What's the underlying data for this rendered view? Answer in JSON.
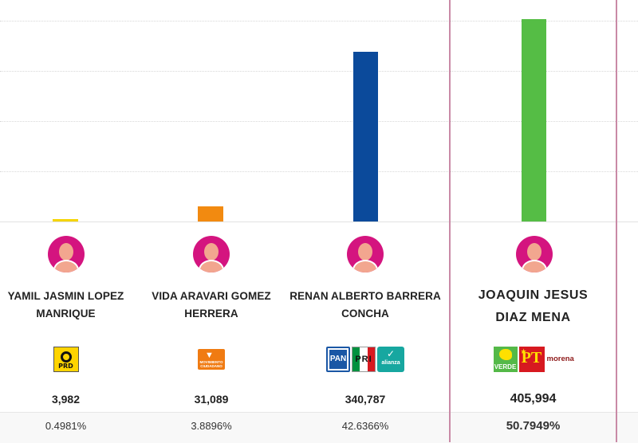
{
  "chart_data": {
    "type": "bar",
    "categories": [
      "YAMIL JASMIN LOPEZ MANRIQUE",
      "VIDA ARAVARI GOMEZ HERRERA",
      "RENAN ALBERTO BARRERA CONCHA",
      "JOAQUIN JESUS DIAZ MENA"
    ],
    "values": [
      3982,
      31089,
      340787,
      405994
    ],
    "percentages": [
      "0.4981%",
      "3.8896%",
      "42.6366%",
      "50.7949%"
    ],
    "colors": [
      "#f5d400",
      "#f28a10",
      "#0b4a9b",
      "#55bd45"
    ],
    "ylim": [
      0,
      425000
    ],
    "grid": true,
    "winner_index": 3
  },
  "candidates": [
    {
      "name": "YAMIL JASMIN LOPEZ MANRIQUE",
      "votes": "3,982",
      "percent": "0.4981%",
      "parties": [
        "PRD"
      ]
    },
    {
      "name": "VIDA ARAVARI GOMEZ HERRERA",
      "votes": "31,089",
      "percent": "3.8896%",
      "parties": [
        "MOVIMIENTO CIUDADANO"
      ]
    },
    {
      "name": "RENAN ALBERTO BARRERA CONCHA",
      "votes": "340,787",
      "percent": "42.6366%",
      "parties": [
        "PAN",
        "PRI",
        "alianza"
      ]
    },
    {
      "name": "JOAQUIN JESUS DIAZ MENA",
      "votes": "405,994",
      "percent": "50.7949%",
      "parties": [
        "VERDE",
        "PT",
        "morena"
      ]
    }
  ],
  "logos": {
    "prd": "PRD",
    "mc": "MOVIMIENTO CIUDADANO",
    "pan": "PAN",
    "pri": "PRI",
    "alianza": "alianza",
    "verde": "VERDE",
    "pt": "PT",
    "morena": "morena"
  }
}
